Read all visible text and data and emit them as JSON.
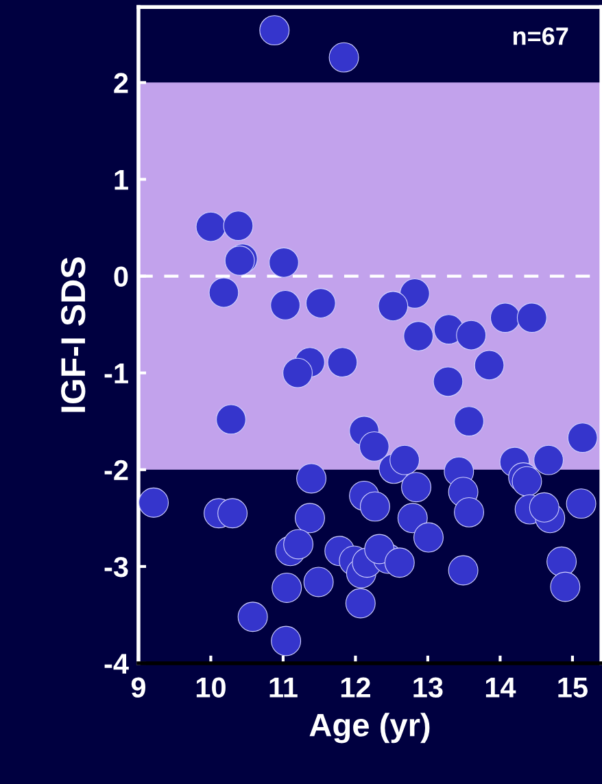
{
  "chart_data": {
    "type": "scatter",
    "xlabel": "Age (yr)",
    "ylabel": "IGF-I SDS",
    "annotations": [
      "n=67"
    ],
    "xlim": [
      9,
      15.4
    ],
    "ylim": [
      -4,
      2.78
    ],
    "xticks": [
      9,
      10,
      11,
      12,
      13,
      14,
      15
    ],
    "yticks": [
      -4,
      -3,
      -2,
      -1,
      0,
      1,
      2
    ],
    "grid": false,
    "marker": "circle",
    "ref_lines": [
      {
        "axis": "y",
        "value": 0,
        "label": null,
        "color": "#ffffff",
        "line_style": "dashed"
      }
    ],
    "bands": [
      {
        "axis": "y",
        "from": -2,
        "to": 2,
        "label": null,
        "color": "#c2a2ec"
      }
    ],
    "series": [
      {
        "color": "#3535cc",
        "x": [
          10.88,
          11.84,
          10.0,
          10.38,
          10.44,
          10.4,
          11.01,
          10.18,
          11.03,
          11.52,
          12.82,
          12.52,
          12.87,
          13.29,
          13.6,
          14.07,
          14.44,
          13.85,
          13.28,
          11.37,
          11.82,
          11.2,
          10.28,
          13.57,
          12.12,
          12.26,
          15.14,
          9.21,
          10.11,
          10.3,
          11.39,
          11.37,
          11.1,
          11.21,
          11.05,
          11.49,
          10.58,
          11.04,
          11.78,
          11.98,
          12.08,
          12.07,
          12.12,
          12.27,
          12.16,
          12.45,
          12.33,
          12.53,
          12.68,
          12.61,
          12.84,
          12.79,
          13.01,
          13.43,
          13.49,
          13.57,
          13.49,
          14.2,
          14.32,
          14.37,
          14.41,
          14.67,
          14.69,
          14.61,
          14.85,
          14.9,
          15.12
        ],
        "values": [
          2.54,
          2.26,
          0.51,
          0.52,
          0.18,
          0.16,
          0.14,
          -0.17,
          -0.3,
          -0.28,
          -0.18,
          -0.31,
          -0.62,
          -0.55,
          -0.61,
          -0.43,
          -0.43,
          -0.92,
          -1.09,
          -0.89,
          -0.89,
          -1.0,
          -1.48,
          -1.5,
          -1.6,
          -1.76,
          -1.67,
          -2.34,
          -2.45,
          -2.45,
          -2.09,
          -2.5,
          -2.84,
          -2.77,
          -3.22,
          -3.16,
          -3.52,
          -3.77,
          -2.84,
          -2.94,
          -3.07,
          -3.38,
          -2.27,
          -2.38,
          -2.96,
          -2.92,
          -2.82,
          -1.99,
          -1.9,
          -2.96,
          -2.18,
          -2.5,
          -2.7,
          -2.02,
          -2.23,
          -2.44,
          -3.04,
          -1.92,
          -2.08,
          -2.12,
          -2.41,
          -1.9,
          -2.5,
          -2.39,
          -2.95,
          -3.21,
          -2.35
        ]
      }
    ]
  }
}
